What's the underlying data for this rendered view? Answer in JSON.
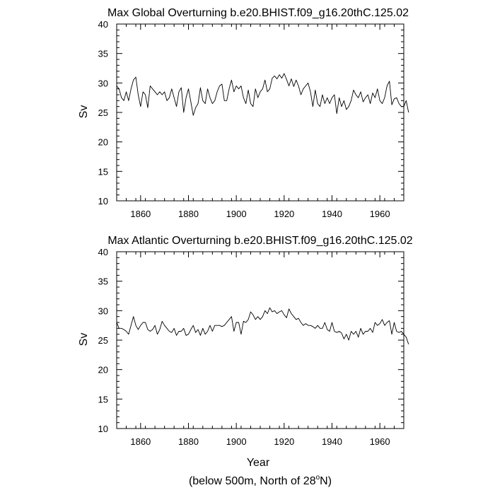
{
  "footnote": {
    "prefix": "(below 500m, North of 28",
    "degree": "o",
    "suffix": "N)"
  },
  "colors": {
    "line": "#000000",
    "axis": "#000000",
    "background": "#ffffff"
  },
  "chart_data": [
    {
      "type": "line",
      "title": "Max Global Overturning b.e20.BHIST.f09_g16.20thC.125.02",
      "xlabel": "",
      "ylabel": "Sv",
      "xlim": [
        1850,
        1970
      ],
      "ylim": [
        10,
        40
      ],
      "x_ticks": [
        1860,
        1880,
        1900,
        1920,
        1940,
        1960
      ],
      "y_ticks": [
        10,
        15,
        20,
        25,
        30,
        35,
        40
      ],
      "grid": false,
      "series": [
        {
          "x_start": 1850,
          "x_step": 1,
          "values": [
            29.5,
            29.0,
            27.5,
            27.0,
            28.5,
            27.0,
            29.0,
            30.5,
            31.0,
            28.0,
            26.0,
            28.5,
            28.0,
            25.8,
            29.5,
            29.0,
            28.5,
            28.0,
            28.5,
            28.0,
            28.5,
            27.0,
            27.5,
            29.0,
            27.5,
            26.0,
            28.5,
            29.2,
            25.0,
            27.5,
            29.0,
            26.8,
            24.5,
            25.8,
            26.5,
            29.2,
            27.0,
            26.5,
            29.0,
            27.5,
            26.5,
            27.0,
            28.5,
            29.5,
            29.8,
            27.0,
            27.0,
            29.0,
            30.5,
            28.5,
            29.5,
            29.0,
            29.5,
            27.5,
            26.5,
            28.8,
            26.5,
            26.0,
            29.0,
            27.5,
            28.5,
            29.0,
            30.5,
            28.5,
            29.0,
            30.8,
            31.2,
            30.7,
            31.4,
            30.8,
            31.6,
            30.6,
            29.5,
            30.7,
            29.4,
            30.5,
            29.5,
            28.0,
            29.0,
            29.5,
            30.0,
            28.5,
            26.0,
            28.8,
            26.5,
            26.0,
            28.0,
            26.5,
            27.5,
            26.5,
            27.5,
            28.0,
            24.8,
            27.5,
            26.0,
            27.0,
            25.5,
            26.0,
            27.0,
            28.8,
            28.0,
            27.5,
            28.5,
            26.8,
            27.5,
            28.0,
            26.5,
            28.3,
            27.5,
            29.0,
            27.0,
            26.5,
            27.5,
            29.5,
            30.3,
            26.3,
            27.3,
            27.5,
            26.5,
            26.0,
            26.0,
            27.0,
            25.0
          ]
        }
      ]
    },
    {
      "type": "line",
      "title": "Max Atlantic Overturning b.e20.BHIST.f09_g16.20thC.125.02",
      "xlabel": "Year",
      "ylabel": "Sv",
      "xlim": [
        1850,
        1970
      ],
      "ylim": [
        10,
        40
      ],
      "x_ticks": [
        1860,
        1880,
        1900,
        1920,
        1940,
        1960
      ],
      "y_ticks": [
        10,
        15,
        20,
        25,
        30,
        35,
        40
      ],
      "grid": false,
      "series": [
        {
          "x_start": 1850,
          "x_step": 1,
          "values": [
            28.0,
            27.0,
            27.0,
            26.8,
            26.5,
            26.0,
            27.5,
            29.0,
            27.5,
            26.8,
            27.5,
            28.0,
            28.0,
            26.8,
            26.5,
            26.8,
            27.5,
            26.0,
            26.8,
            28.2,
            27.5,
            27.0,
            26.5,
            26.3,
            27.0,
            25.8,
            26.5,
            26.5,
            27.0,
            25.8,
            26.0,
            26.8,
            27.5,
            26.3,
            26.8,
            25.8,
            27.0,
            26.0,
            26.5,
            27.5,
            26.5,
            27.5,
            27.5,
            27.5,
            27.3,
            27.5,
            28.0,
            28.5,
            29.0,
            26.5,
            28.0,
            28.0,
            26.0,
            28.2,
            28.0,
            28.5,
            29.8,
            29.3,
            28.5,
            29.0,
            28.5,
            29.0,
            30.0,
            29.5,
            30.5,
            29.8,
            30.0,
            29.5,
            29.8,
            30.0,
            29.3,
            28.8,
            30.3,
            29.5,
            29.0,
            28.5,
            28.7,
            28.0,
            27.5,
            27.8,
            27.5,
            27.5,
            27.3,
            27.0,
            27.5,
            27.0,
            27.0,
            28.0,
            26.8,
            26.5,
            28.0,
            26.5,
            26.3,
            26.5,
            26.2,
            25.2,
            26.0,
            25.0,
            26.5,
            26.0,
            26.5,
            25.5,
            27.0,
            26.0,
            26.5,
            26.5,
            27.0,
            26.3,
            28.0,
            27.5,
            27.8,
            28.5,
            27.5,
            28.0,
            28.3,
            26.0,
            28.0,
            26.5,
            26.3,
            26.5,
            26.0,
            25.5,
            24.3
          ]
        }
      ]
    }
  ]
}
